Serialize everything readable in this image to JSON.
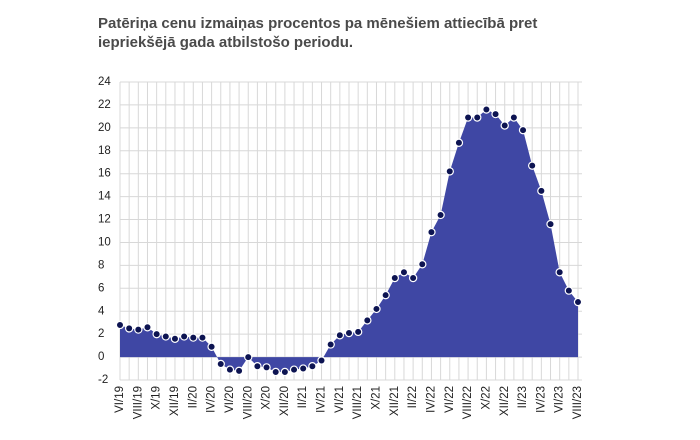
{
  "chart_data": {
    "type": "area",
    "title": "Patēriņa cenu izmaiņas procentos pa mēnešiem attiecībā pret iepriekšējā gada atbilstošo periodu.",
    "categories": [
      "VI/19",
      null,
      "VIII/19",
      null,
      "X/19",
      null,
      "XII/19",
      null,
      "II/20",
      null,
      "IV/20",
      null,
      "VI/20",
      null,
      "VIII/20",
      null,
      "X/20",
      null,
      "XII/20",
      null,
      "II/21",
      null,
      "IV/21",
      null,
      "VI/21",
      null,
      "VIII/21",
      null,
      "X/21",
      null,
      "XII/21",
      null,
      "II/22",
      null,
      "IV/22",
      null,
      "VI/22",
      null,
      "VIII/22",
      null,
      "X/22",
      null,
      "XII/22",
      null,
      "II/23",
      null,
      "IV/23",
      null,
      "VI/23",
      null,
      "VIII/23"
    ],
    "series": [
      {
        "name": "Patēriņa cenu izmaiņas",
        "color": "#3f47a4",
        "marker_color": "#0d1452",
        "values": [
          2.8,
          2.5,
          2.4,
          2.6,
          2.0,
          1.8,
          1.6,
          1.8,
          1.7,
          1.7,
          0.9,
          -0.6,
          -1.1,
          -1.2,
          0.0,
          -0.8,
          -0.9,
          -1.3,
          -1.3,
          -1.1,
          -1.0,
          -0.8,
          -0.3,
          1.1,
          1.9,
          2.1,
          2.2,
          3.2,
          4.2,
          5.4,
          6.9,
          7.4,
          6.9,
          8.1,
          10.9,
          12.4,
          16.2,
          18.7,
          20.9,
          20.9,
          21.6,
          21.2,
          20.2,
          20.9,
          19.8,
          16.7,
          14.5,
          11.6,
          7.4,
          5.8,
          4.8
        ]
      }
    ],
    "ylim": [
      -2,
      24
    ],
    "yticks": [
      -2,
      0,
      2,
      4,
      6,
      8,
      10,
      12,
      14,
      16,
      18,
      20,
      22,
      24
    ],
    "grid": true
  }
}
